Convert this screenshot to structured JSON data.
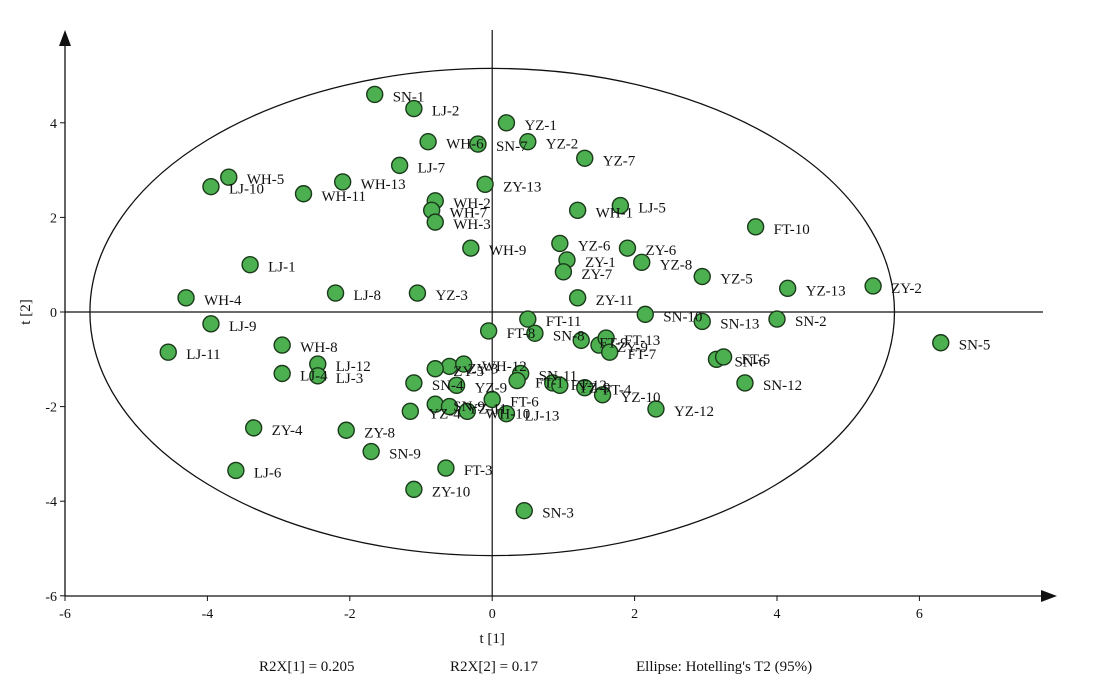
{
  "chart_data": {
    "type": "scatter",
    "xlabel": "t [1]",
    "ylabel": "t [2]",
    "xlim": [
      -6,
      8
    ],
    "ylim": [
      -6,
      6
    ],
    "xticks": [
      -6,
      -4,
      -2,
      0,
      2,
      4,
      6
    ],
    "yticks": [
      -6,
      -4,
      -2,
      0,
      2,
      4
    ],
    "marker_color": "#4caf50",
    "marker_edge_color": "#1a3a1a",
    "grid": false,
    "ellipse": {
      "center": [
        0,
        0
      ],
      "semi_axis_x": 5.65,
      "semi_axis_y": 5.15
    },
    "points": [
      {
        "label": "SN-1",
        "x": -1.65,
        "y": 4.6
      },
      {
        "label": "LJ-2",
        "x": -1.1,
        "y": 4.3
      },
      {
        "label": "YZ-1",
        "x": 0.2,
        "y": 4.0
      },
      {
        "label": "YZ-2",
        "x": 0.5,
        "y": 3.6
      },
      {
        "label": "SN-7",
        "x": -0.2,
        "y": 3.55
      },
      {
        "label": "WH-6",
        "x": -0.9,
        "y": 3.6
      },
      {
        "label": "YZ-7",
        "x": 1.3,
        "y": 3.25
      },
      {
        "label": "LJ-7",
        "x": -1.3,
        "y": 3.1
      },
      {
        "label": "WH-5",
        "x": -3.7,
        "y": 2.85
      },
      {
        "label": "LJ-10",
        "x": -3.95,
        "y": 2.65
      },
      {
        "label": "WH-11",
        "x": -2.65,
        "y": 2.5
      },
      {
        "label": "WH-13",
        "x": -2.1,
        "y": 2.75
      },
      {
        "label": "ZY-13",
        "x": -0.1,
        "y": 2.7
      },
      {
        "label": "WH-2",
        "x": -0.8,
        "y": 2.35
      },
      {
        "label": "WH-7",
        "x": -0.85,
        "y": 2.15
      },
      {
        "label": "WH-3",
        "x": -0.8,
        "y": 1.9
      },
      {
        "label": "WH-1",
        "x": 1.2,
        "y": 2.15
      },
      {
        "label": "LJ-5",
        "x": 1.8,
        "y": 2.25
      },
      {
        "label": "FT-10",
        "x": 3.7,
        "y": 1.8
      },
      {
        "label": "WH-9",
        "x": -0.3,
        "y": 1.35
      },
      {
        "label": "YZ-6",
        "x": 0.95,
        "y": 1.45
      },
      {
        "label": "ZY-6",
        "x": 1.9,
        "y": 1.35
      },
      {
        "label": "ZY-1",
        "x": 1.05,
        "y": 1.1
      },
      {
        "label": "YZ-8",
        "x": 2.1,
        "y": 1.05
      },
      {
        "label": "ZY-7",
        "x": 1.0,
        "y": 0.85
      },
      {
        "label": "YZ-5",
        "x": 2.95,
        "y": 0.75
      },
      {
        "label": "YZ-13",
        "x": 4.15,
        "y": 0.5
      },
      {
        "label": "ZY-2",
        "x": 5.35,
        "y": 0.55
      },
      {
        "label": "LJ-1",
        "x": -3.4,
        "y": 1.0
      },
      {
        "label": "LJ-8",
        "x": -2.2,
        "y": 0.4
      },
      {
        "label": "YZ-3",
        "x": -1.05,
        "y": 0.4
      },
      {
        "label": "WH-4",
        "x": -4.3,
        "y": 0.3
      },
      {
        "label": "ZY-11",
        "x": 1.2,
        "y": 0.3
      },
      {
        "label": "LJ-9",
        "x": -3.95,
        "y": -0.25
      },
      {
        "label": "SN-10",
        "x": 2.15,
        "y": -0.05
      },
      {
        "label": "SN-13",
        "x": 2.95,
        "y": -0.2
      },
      {
        "label": "SN-2",
        "x": 4.0,
        "y": -0.15
      },
      {
        "label": "SN-5",
        "x": 6.3,
        "y": -0.65
      },
      {
        "label": "FT-11",
        "x": 0.5,
        "y": -0.15
      },
      {
        "label": "FT-8",
        "x": -0.05,
        "y": -0.4
      },
      {
        "label": "SN-8",
        "x": 0.6,
        "y": -0.45
      },
      {
        "label": "FT-9",
        "x": 1.25,
        "y": -0.6
      },
      {
        "label": "ZY-9",
        "x": 1.5,
        "y": -0.7
      },
      {
        "label": "FT-13",
        "x": 1.6,
        "y": -0.55
      },
      {
        "label": "FT-7",
        "x": 1.65,
        "y": -0.85
      },
      {
        "label": "WH-8",
        "x": -2.95,
        "y": -0.7
      },
      {
        "label": "LJ-11",
        "x": -4.55,
        "y": -0.85
      },
      {
        "label": "SN-6",
        "x": 3.15,
        "y": -1.0
      },
      {
        "label": "FT-5",
        "x": 3.25,
        "y": -0.95
      },
      {
        "label": "LJ-12",
        "x": -2.45,
        "y": -1.1
      },
      {
        "label": "LJ-4",
        "x": -2.95,
        "y": -1.3
      },
      {
        "label": "LJ-3",
        "x": -2.45,
        "y": -1.35
      },
      {
        "label": "ZY-3",
        "x": -0.6,
        "y": -1.15
      },
      {
        "label": "ZY-5",
        "x": -0.8,
        "y": -1.2
      },
      {
        "label": "WH-12",
        "x": -0.4,
        "y": -1.1
      },
      {
        "label": "SN-11",
        "x": 0.4,
        "y": -1.3
      },
      {
        "label": "FT-1",
        "x": 0.35,
        "y": -1.45
      },
      {
        "label": "SN-4",
        "x": -1.1,
        "y": -1.5
      },
      {
        "label": "YZ-9",
        "x": -0.5,
        "y": -1.55
      },
      {
        "label": "SN-12",
        "x": 3.55,
        "y": -1.5
      },
      {
        "label": "FT-12",
        "x": 0.85,
        "y": -1.5
      },
      {
        "label": "YZ-9",
        "x": 0.95,
        "y": -1.55
      },
      {
        "label": "FT-4",
        "x": 1.3,
        "y": -1.6
      },
      {
        "label": "YZ-10",
        "x": 1.55,
        "y": -1.75
      },
      {
        "label": "YZ-12",
        "x": 2.3,
        "y": -2.05
      },
      {
        "label": "FT-6",
        "x": 0.0,
        "y": -1.85
      },
      {
        "label": "SN-9",
        "x": -0.8,
        "y": -1.95
      },
      {
        "label": "YZ-4",
        "x": -1.15,
        "y": -2.1
      },
      {
        "label": "YZ-11",
        "x": -0.6,
        "y": -2.0
      },
      {
        "label": "WH-10",
        "x": -0.35,
        "y": -2.1
      },
      {
        "label": "LJ-13",
        "x": 0.2,
        "y": -2.15
      },
      {
        "label": "ZY-4",
        "x": -3.35,
        "y": -2.45
      },
      {
        "label": "ZY-8",
        "x": -2.05,
        "y": -2.5
      },
      {
        "label": "SN-9",
        "x": -1.7,
        "y": -2.95
      },
      {
        "label": "FT-3",
        "x": -0.65,
        "y": -3.3
      },
      {
        "label": "LJ-6",
        "x": -3.6,
        "y": -3.35
      },
      {
        "label": "ZY-10",
        "x": -1.1,
        "y": -3.75
      },
      {
        "label": "SN-3",
        "x": 0.45,
        "y": -4.2
      }
    ]
  },
  "footer": {
    "r2x1": "R2X[1] = 0.205",
    "r2x2": "R2X[2] = 0.17",
    "ellipse_note": "Ellipse: Hotelling's T2 (95%)"
  }
}
